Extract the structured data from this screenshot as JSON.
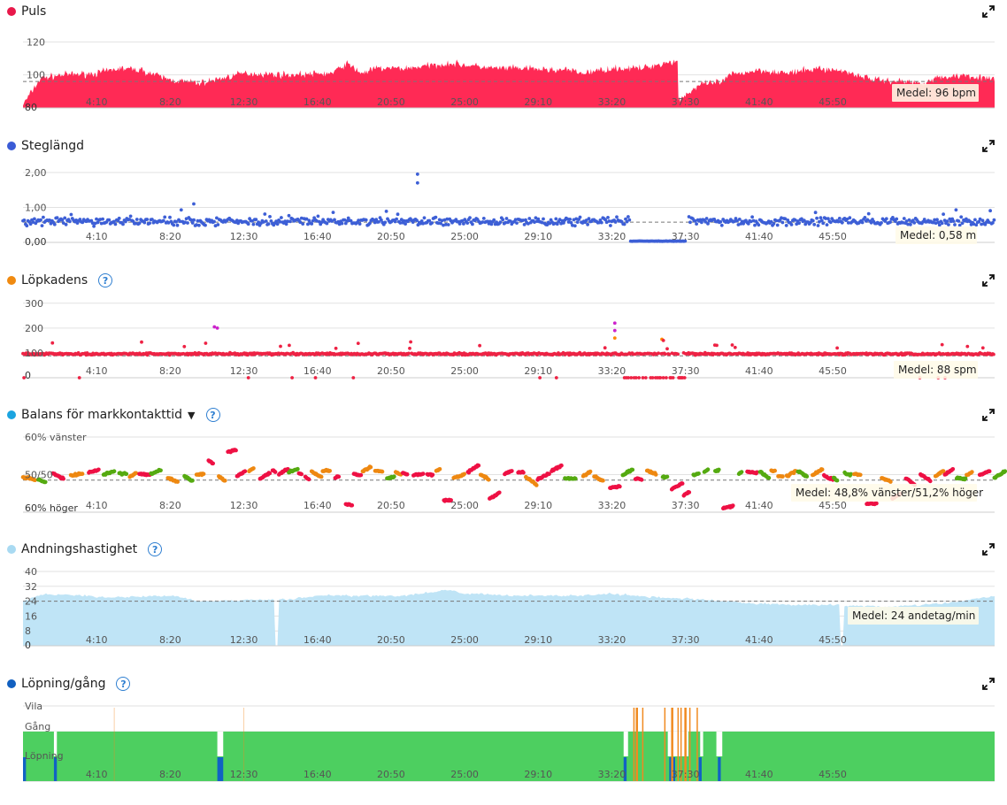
{
  "x_ticks": [
    "4:10",
    "8:20",
    "12:30",
    "16:40",
    "20:50",
    "25:00",
    "29:10",
    "33:20",
    "37:30",
    "41:40",
    "45:50"
  ],
  "colors": {
    "heart": "#ff2a55",
    "stride": "#3d5fd6",
    "cadence": "#ee2244",
    "cadence_purple": "#cc22cc",
    "cadence_orange": "#ff8800",
    "balance_red": "#ee1144",
    "balance_orange": "#ee8811",
    "balance_green": "#55aa11",
    "breath": "#bfe4f6",
    "run_green": "#4dcf60",
    "run_blue": "#1162c4",
    "walk_orange": "#f08a20"
  },
  "chart_data": [
    {
      "type": "area",
      "title": "Puls",
      "icon": "red-dot",
      "ylim": [
        80,
        125
      ],
      "yticks": [
        "80",
        "100",
        "120"
      ],
      "mean": 96,
      "mean_label": "Medel: 96 bpm",
      "envelope_seconds": [
        0,
        60,
        130,
        250,
        330,
        400,
        500,
        600,
        750,
        900,
        1050,
        1100,
        1150,
        1200,
        1300,
        1450,
        1600,
        1700,
        1800,
        1850,
        1900,
        2000,
        2100,
        2150,
        2200,
        2225,
        2226,
        2300,
        2380,
        2400,
        2500,
        2600,
        2700,
        2800,
        2830,
        2900,
        3000,
        3050,
        3100,
        3200,
        3300
      ],
      "envelope_bpm": [
        82,
        98,
        100,
        101,
        104,
        103,
        97,
        95,
        101,
        100,
        101,
        107,
        101,
        104,
        104,
        107,
        104,
        104,
        103,
        103,
        101,
        104,
        104,
        106,
        108,
        108,
        85,
        94,
        96,
        100,
        103,
        101,
        104,
        102,
        100,
        97,
        96,
        95,
        98,
        100,
        97
      ]
    },
    {
      "type": "scatter",
      "title": "Steglängd",
      "icon": "blue-dot",
      "ylim": [
        0,
        2.1
      ],
      "yticks": [
        "0,00",
        "1,00",
        "2,00"
      ],
      "mean": 0.58,
      "mean_label": "Medel: 0,58 m",
      "typical_value": 0.6,
      "gap_seconds": [
        2060,
        2260
      ],
      "gap_value": 0.03,
      "outliers": [
        {
          "t": 1340,
          "v": 1.95
        },
        {
          "t": 1340,
          "v": 1.7
        },
        {
          "t": 580,
          "v": 1.1
        }
      ]
    },
    {
      "type": "scatter",
      "title": "Löpkadens",
      "icon": "orange-dot",
      "help": "?",
      "ylim": [
        0,
        310
      ],
      "yticks": [
        "0",
        "100",
        "200",
        "300"
      ],
      "mean": 88,
      "mean_label": "Medel: 88 spm",
      "typical_value": 96,
      "outliers": [
        {
          "t": 650,
          "v": 205,
          "c": "purple"
        },
        {
          "t": 660,
          "v": 200,
          "c": "purple"
        },
        {
          "t": 2010,
          "v": 220,
          "c": "purple"
        },
        {
          "t": 2010,
          "v": 190,
          "c": "purple"
        },
        {
          "t": 2010,
          "v": 160,
          "c": "orange"
        },
        {
          "t": 2170,
          "v": 155,
          "c": "orange"
        },
        {
          "t": 2175,
          "v": 150,
          "c": "red"
        },
        {
          "t": 100,
          "v": 140,
          "c": "red"
        }
      ]
    },
    {
      "type": "scatter",
      "title": "Balans för markkontakttid",
      "icon": "cyan-dot",
      "dropdown": "▼",
      "help": "?",
      "ylim": [
        -12,
        12
      ],
      "ytick_labels": {
        "top": "60% vänster",
        "middle": "50/50",
        "bottom": "60% höger"
      },
      "mean": 1.2,
      "mean_label": "Medel: 48,8% vänster/51,2% höger"
    },
    {
      "type": "area",
      "title": "Andningshastighet",
      "icon": "lightblue-dot",
      "help": "?",
      "ylim": [
        0,
        40
      ],
      "yticks": [
        "0",
        "8",
        "16",
        "24",
        "32",
        "40"
      ],
      "mean": 24,
      "mean_label": "Medel: 24 andetag/min",
      "envelope_seconds": [
        0,
        80,
        300,
        500,
        600,
        900,
        1000,
        1300,
        1400,
        1450,
        1500,
        1700,
        1900,
        2000,
        2150,
        2300,
        2450,
        2600,
        2750,
        2950,
        3050,
        3150,
        3300
      ],
      "envelope_rpm": [
        24,
        28,
        26,
        27,
        24,
        25,
        27,
        27,
        29,
        30,
        28,
        27,
        27,
        28,
        26,
        25,
        23,
        22,
        22,
        21,
        22,
        23,
        27
      ],
      "dips_seconds": [
        860,
        2780
      ]
    },
    {
      "type": "bar",
      "title": "Löpning/gång",
      "icon": "darkblue-dot",
      "help": "?",
      "levels": [
        "Vila",
        "Gång",
        "Löpning"
      ],
      "blue_stripes": [
        {
          "t0": 0,
          "t1": 10
        },
        {
          "t0": 105,
          "t1": 115
        },
        {
          "t0": 660,
          "t1": 680
        },
        {
          "t0": 2040,
          "t1": 2050
        },
        {
          "t0": 2195,
          "t1": 2215
        },
        {
          "t0": 2295,
          "t1": 2305
        },
        {
          "t0": 2360,
          "t1": 2370
        }
      ],
      "white_gaps": [
        {
          "t0": 105,
          "t1": 115
        },
        {
          "t0": 660,
          "t1": 680
        },
        {
          "t0": 2040,
          "t1": 2055
        },
        {
          "t0": 2190,
          "t1": 2260
        },
        {
          "t0": 2300,
          "t1": 2310
        },
        {
          "t0": 2355,
          "t1": 2375
        }
      ],
      "walk_spikes": [
        310,
        750,
        2075,
        2085,
        2105,
        2180,
        2205,
        2225,
        2235,
        2250,
        2265,
        2290
      ]
    }
  ]
}
